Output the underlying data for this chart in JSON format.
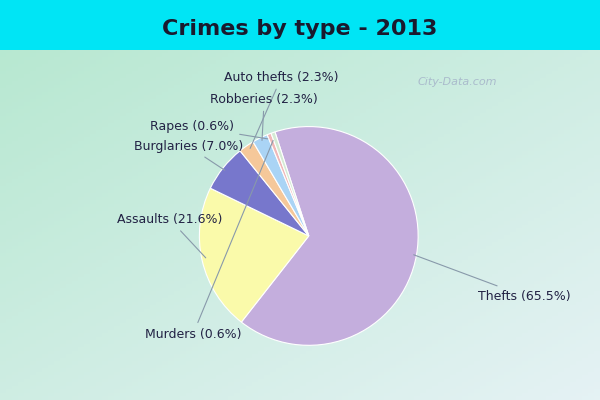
{
  "title": "Crimes by type - 2013",
  "labels": [
    "Thefts",
    "Assaults",
    "Burglaries",
    "Auto thefts",
    "Robberies",
    "Rapes",
    "Murders"
  ],
  "values": [
    65.5,
    21.6,
    7.0,
    2.3,
    2.3,
    0.6,
    0.6
  ],
  "colors": [
    "#c4aedd",
    "#fafaaa",
    "#7777cc",
    "#f5c89a",
    "#aad4f5",
    "#f0b8b8",
    "#d4ead4"
  ],
  "bg_cyan": "#00e5f5",
  "bg_inner_tl": "#b8e8d8",
  "bg_inner_br": "#e8f0f8",
  "title_fontsize": 16,
  "label_fontsize": 9,
  "startangle": 108,
  "watermark": "City-Data.com"
}
